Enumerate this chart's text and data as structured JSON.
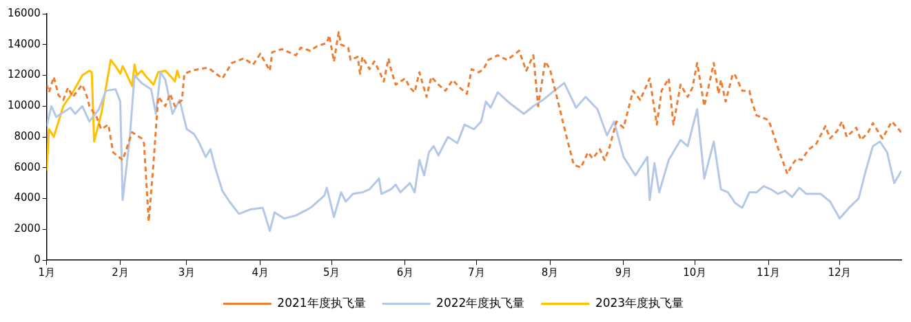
{
  "chart_data": {
    "type": "line",
    "legend": "bottom",
    "grid": false,
    "marker": "none",
    "xlim": [
      "--01-01",
      "--12-27"
    ],
    "xticks": [
      {
        "value": "--01-01",
        "label": "1月"
      },
      {
        "value": "--02-01",
        "label": "2月"
      },
      {
        "value": "--03-01",
        "label": "3月"
      },
      {
        "value": "--04-01",
        "label": "4月"
      },
      {
        "value": "--05-01",
        "label": "5月"
      },
      {
        "value": "--06-01",
        "label": "6月"
      },
      {
        "value": "--07-01",
        "label": "7月"
      },
      {
        "value": "--08-01",
        "label": "8月"
      },
      {
        "value": "--09-01",
        "label": "9月"
      },
      {
        "value": "--10-01",
        "label": "10月"
      },
      {
        "value": "--11-01",
        "label": "11月"
      },
      {
        "value": "--12-01",
        "label": "12月"
      }
    ],
    "ylim": [
      0,
      16000
    ],
    "yticks": [
      0,
      2000,
      4000,
      6000,
      8000,
      10000,
      12000,
      14000,
      16000
    ],
    "series": [
      {
        "name": "2021年度执飞量",
        "color": "#ed7d31",
        "line_style": "dashed",
        "x": [
          "--01-01",
          "--01-02",
          "--01-04",
          "--01-06",
          "--01-08",
          "--01-10",
          "--01-12",
          "--01-16",
          "--01-18",
          "--01-19",
          "--01-22",
          "--01-24",
          "--01-27",
          "--01-29",
          "--02-02",
          "--02-06",
          "--02-10",
          "--02-11",
          "--02-13",
          "--02-15",
          "--02-17",
          "--02-20",
          "--02-22",
          "--02-24",
          "--02-27",
          "--02-28",
          "--03-03",
          "--03-06",
          "--03-10",
          "--03-16",
          "--03-20",
          "--03-25",
          "--03-29",
          "--04-01",
          "--04-05",
          "--04-06",
          "--04-10",
          "--04-16",
          "--04-18",
          "--04-22",
          "--04-25",
          "--04-29",
          "--04-30",
          "--05-02",
          "--05-04",
          "--05-05",
          "--05-08",
          "--05-09",
          "--05-12",
          "--05-13",
          "--05-14",
          "--05-17",
          "--05-19",
          "--05-21",
          "--05-23",
          "--05-25",
          "--05-26",
          "--05-28",
          "--06-01",
          "--06-03",
          "--06-05",
          "--06-07",
          "--06-10",
          "--06-12",
          "--06-15",
          "--06-18",
          "--06-21",
          "--06-24",
          "--06-27",
          "--06-29",
          "--07-02",
          "--07-04",
          "--07-06",
          "--07-10",
          "--07-14",
          "--07-19",
          "--07-22",
          "--07-25",
          "--07-27",
          "--07-30",
          "--08-01",
          "--08-05",
          "--08-08",
          "--08-11",
          "--08-14",
          "--08-17",
          "--08-19",
          "--08-22",
          "--08-24",
          "--08-26",
          "--08-29",
          "--09-01",
          "--09-05",
          "--09-08",
          "--09-12",
          "--09-15",
          "--09-17",
          "--09-20",
          "--09-22",
          "--09-25",
          "--09-28",
          "--09-30",
          "--10-02",
          "--10-05",
          "--10-09",
          "--10-11",
          "--10-12",
          "--10-14",
          "--10-17",
          "--10-18",
          "--10-21",
          "--10-24",
          "--10-25",
          "--10-27",
          "--11-01",
          "--11-02",
          "--11-05",
          "--11-09",
          "--11-11",
          "--11-13",
          "--11-15",
          "--11-18",
          "--11-21",
          "--11-25",
          "--11-27",
          "--11-30",
          "--12-02",
          "--12-04",
          "--12-08",
          "--12-10",
          "--12-13",
          "--12-15",
          "--12-19",
          "--12-23",
          "--12-27"
        ],
        "values": [
          11400,
          10900,
          11900,
          10700,
          10400,
          11200,
          10600,
          11400,
          10600,
          10000,
          9300,
          8500,
          8800,
          7000,
          6500,
          8300,
          7900,
          7600,
          2500,
          6300,
          10600,
          10000,
          10800,
          10000,
          10400,
          12100,
          12300,
          12400,
          12500,
          11800,
          12800,
          13100,
          12700,
          13400,
          12300,
          13500,
          13700,
          13300,
          13800,
          13600,
          13900,
          14100,
          14600,
          12900,
          14800,
          14000,
          13800,
          13000,
          13200,
          12100,
          13200,
          12400,
          12900,
          12300,
          11600,
          13100,
          12400,
          11400,
          11800,
          11200,
          10900,
          12200,
          10600,
          11900,
          11400,
          11000,
          11700,
          11200,
          10800,
          12400,
          12200,
          12400,
          13000,
          13300,
          13000,
          13600,
          12300,
          13300,
          10000,
          12900,
          12400,
          9900,
          8000,
          6200,
          6000,
          7000,
          6600,
          7200,
          6500,
          7300,
          9000,
          8600,
          11000,
          10400,
          11800,
          8800,
          11000,
          11800,
          8800,
          11400,
          10600,
          11200,
          12800,
          10000,
          12800,
          10800,
          11700,
          10300,
          12100,
          12000,
          11000,
          11000,
          10300,
          9400,
          9100,
          8700,
          7300,
          5600,
          6200,
          6600,
          6500,
          7200,
          7500,
          8700,
          7900,
          8400,
          9000,
          8000,
          8600,
          7800,
          8300,
          8900,
          7900,
          9000,
          8300
        ]
      },
      {
        "name": "2022年度执飞量",
        "color": "#b4c7e7",
        "line_style": "solid",
        "x": [
          "--01-01",
          "--01-03",
          "--01-05",
          "--01-11",
          "--01-13",
          "--01-16",
          "--01-19",
          "--01-23",
          "--01-26",
          "--01-30",
          "--02-01",
          "--02-02",
          "--02-05",
          "--02-07",
          "--02-10",
          "--02-14",
          "--02-16",
          "--02-18",
          "--02-20",
          "--02-23",
          "--02-26",
          "--03-01",
          "--03-04",
          "--03-06",
          "--03-09",
          "--03-11",
          "--03-13",
          "--03-16",
          "--03-19",
          "--03-23",
          "--03-28",
          "--04-02",
          "--04-05",
          "--04-07",
          "--04-11",
          "--04-16",
          "--04-21",
          "--04-23",
          "--04-28",
          "--04-29",
          "--05-02",
          "--05-05",
          "--05-07",
          "--05-10",
          "--05-14",
          "--05-17",
          "--05-21",
          "--05-22",
          "--05-26",
          "--05-28",
          "--05-30",
          "--06-03",
          "--06-05",
          "--06-07",
          "--06-09",
          "--06-11",
          "--06-13",
          "--06-15",
          "--06-19",
          "--06-23",
          "--06-26",
          "--06-30",
          "--07-03",
          "--07-05",
          "--07-07",
          "--07-10",
          "--07-15",
          "--07-21",
          "--07-25",
          "--07-29",
          "--08-02",
          "--08-07",
          "--08-12",
          "--08-16",
          "--08-21",
          "--08-25",
          "--08-28",
          "--09-01",
          "--09-06",
          "--09-11",
          "--09-12",
          "--09-14",
          "--09-16",
          "--09-20",
          "--09-25",
          "--09-28",
          "--10-02",
          "--10-05",
          "--10-09",
          "--10-12",
          "--10-15",
          "--10-18",
          "--10-21",
          "--10-24",
          "--10-27",
          "--10-30",
          "--11-02",
          "--11-05",
          "--11-08",
          "--11-11",
          "--11-14",
          "--11-17",
          "--11-20",
          "--11-23",
          "--11-27",
          "--12-01",
          "--12-05",
          "--12-09",
          "--12-12",
          "--12-15",
          "--12-18",
          "--12-21",
          "--12-24",
          "--12-27"
        ],
        "values": [
          8700,
          10000,
          9300,
          9900,
          9500,
          10000,
          9000,
          9800,
          11000,
          11100,
          10300,
          3900,
          7900,
          12000,
          11500,
          11100,
          9500,
          12200,
          11700,
          9500,
          10400,
          8500,
          8200,
          7700,
          6700,
          7200,
          6000,
          4500,
          3800,
          3000,
          3300,
          3400,
          1900,
          3100,
          2700,
          2900,
          3300,
          3500,
          4200,
          4700,
          2800,
          4400,
          3800,
          4300,
          4400,
          4600,
          5300,
          4300,
          4600,
          4900,
          4400,
          5000,
          4400,
          6500,
          5500,
          7000,
          7400,
          6800,
          8000,
          7600,
          8800,
          8500,
          9000,
          10300,
          9900,
          10900,
          10200,
          9500,
          10000,
          10400,
          10900,
          11500,
          9900,
          10600,
          9800,
          8100,
          9000,
          6700,
          5500,
          6700,
          3900,
          6300,
          4400,
          6500,
          7800,
          7400,
          9800,
          5300,
          7700,
          4600,
          4400,
          3700,
          3400,
          4400,
          4400,
          4800,
          4600,
          4300,
          4500,
          4100,
          4700,
          4300,
          4300,
          4300,
          3800,
          2700,
          3400,
          4000,
          5800,
          7400,
          7700,
          7000,
          5000,
          5800
        ]
      },
      {
        "name": "2023年度执飞量",
        "color": "#ffc000",
        "line_style": "solid",
        "x": [
          "--01-01",
          "--01-02",
          "--01-04",
          "--01-08",
          "--01-12",
          "--01-16",
          "--01-19",
          "--01-20",
          "--01-21",
          "--01-24",
          "--01-28",
          "--01-30",
          "--02-01",
          "--02-02",
          "--02-03",
          "--02-06",
          "--02-07",
          "--02-08",
          "--02-10",
          "--02-12",
          "--02-15",
          "--02-17",
          "--02-20",
          "--02-23",
          "--02-24",
          "--02-25",
          "--02-26"
        ],
        "values": [
          5800,
          8500,
          8000,
          10000,
          10900,
          12000,
          12300,
          12200,
          7700,
          9500,
          13000,
          12600,
          12100,
          12600,
          12300,
          11300,
          12700,
          12000,
          12300,
          11900,
          11400,
          12200,
          12300,
          11800,
          11600,
          12300,
          11800
        ]
      }
    ]
  }
}
